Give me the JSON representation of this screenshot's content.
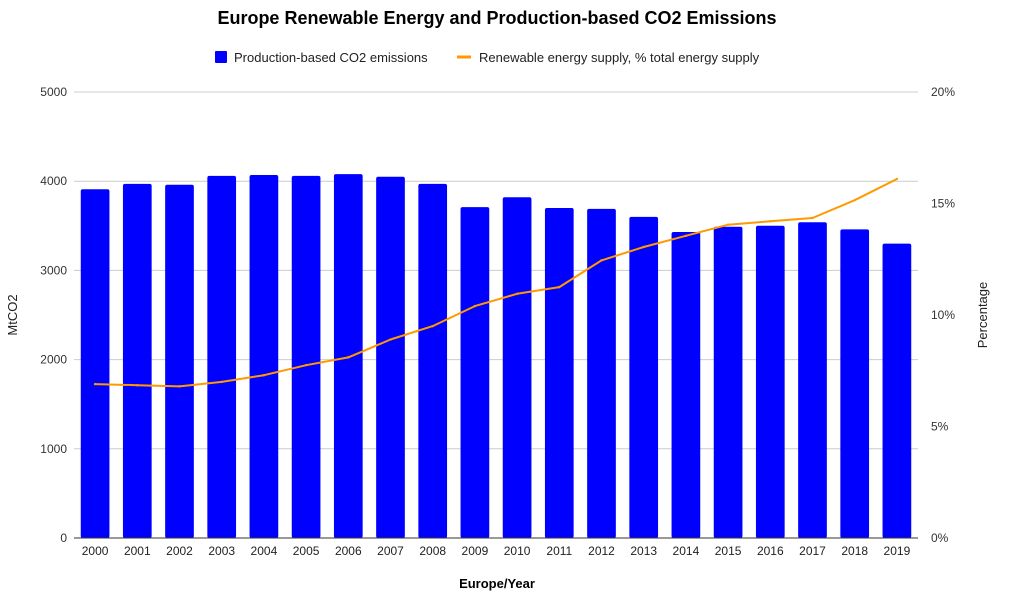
{
  "chart_data": {
    "type": "bar",
    "title": "Europe Renewable Energy and Production-based CO2 Emissions",
    "xlabel": "Europe/Year",
    "ylabel": "MtCO2",
    "y2label": "Percentage",
    "categories": [
      "2000",
      "2001",
      "2002",
      "2003",
      "2004",
      "2005",
      "2006",
      "2007",
      "2008",
      "2009",
      "2010",
      "2011",
      "2012",
      "2013",
      "2014",
      "2015",
      "2016",
      "2017",
      "2018",
      "2019"
    ],
    "ylim": [
      0,
      5000
    ],
    "yticks": [
      "0",
      "1000",
      "2000",
      "3000",
      "4000",
      "5000"
    ],
    "y2lim": [
      0,
      20
    ],
    "y2ticks": [
      "0%",
      "5%",
      "10%",
      "15%",
      "20%"
    ],
    "grid": true,
    "legend_position": "top",
    "series": [
      {
        "name": "Production-based CO2 emissions",
        "type": "bar",
        "axis": "left",
        "color": "#0000ff",
        "values": [
          3910,
          3970,
          3960,
          4060,
          4070,
          4060,
          4080,
          4050,
          3970,
          3710,
          3820,
          3700,
          3690,
          3600,
          3430,
          3490,
          3500,
          3540,
          3460,
          3300
        ]
      },
      {
        "name": "Renewable energy supply, % total energy supply",
        "type": "line",
        "axis": "right",
        "color": "#ff9900",
        "values": [
          6.9,
          6.85,
          6.8,
          7.0,
          7.3,
          7.75,
          8.1,
          8.9,
          9.5,
          10.4,
          10.95,
          11.25,
          12.45,
          13.05,
          13.55,
          14.05,
          14.2,
          14.35,
          15.15,
          16.1
        ]
      }
    ]
  }
}
